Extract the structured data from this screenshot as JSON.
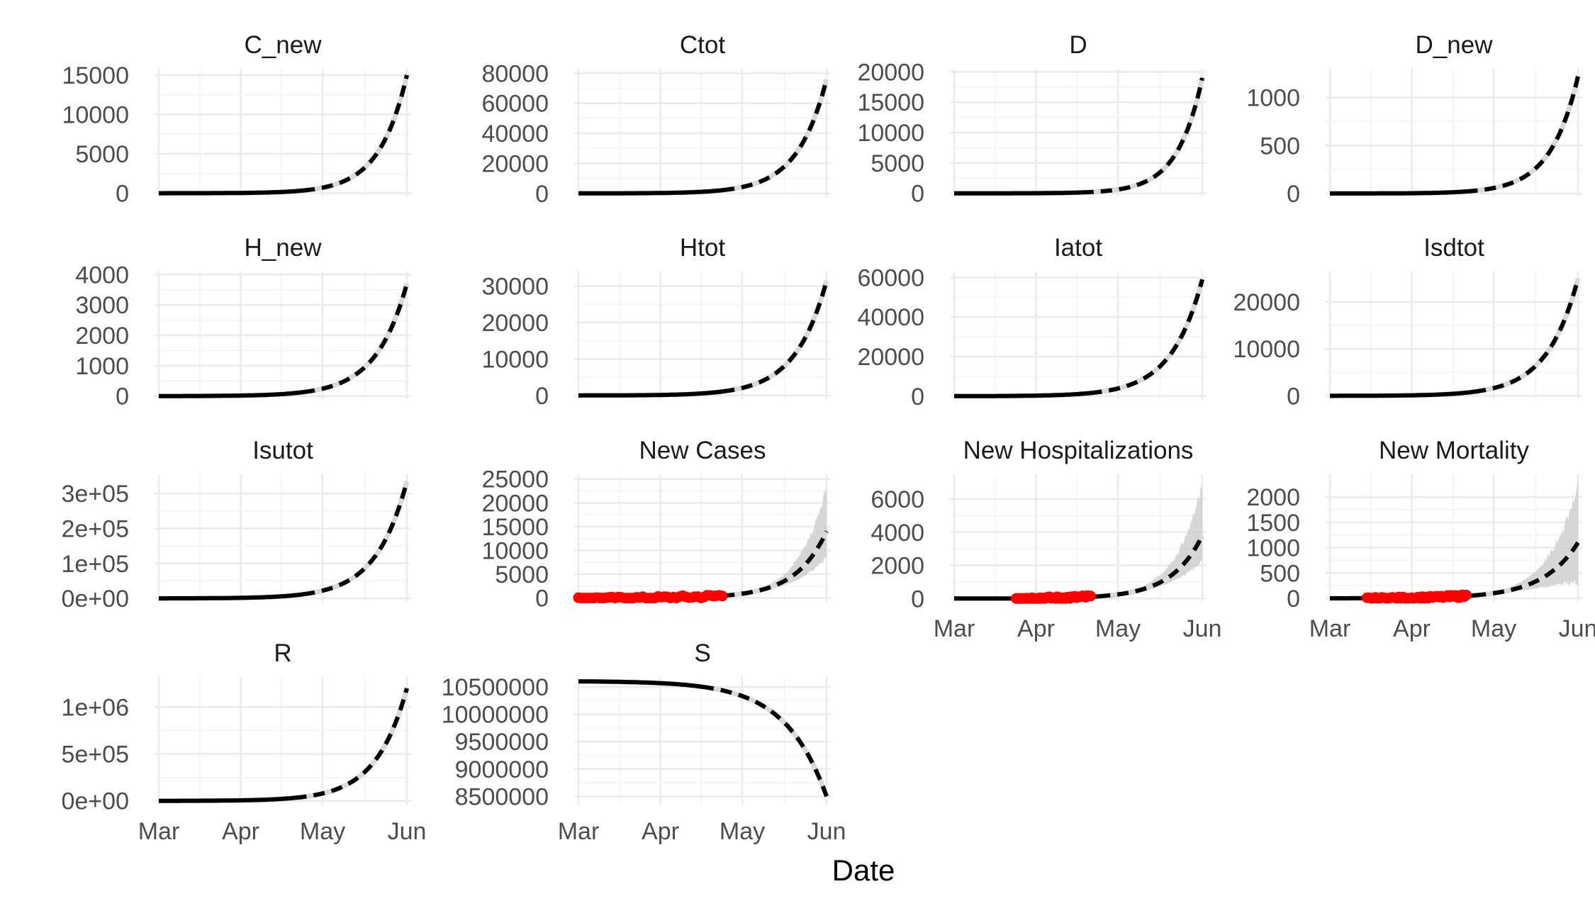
{
  "figure": {
    "x_axis_title": "Date",
    "x_tick_labels": [
      "Mar",
      "Apr",
      "May",
      "Jun"
    ],
    "colors": {
      "observed": "#ff0000",
      "projection": "#000000",
      "band": "#cfcfcf",
      "band_mean": "#ffffff",
      "grid": "#ebebeb"
    }
  },
  "chart_data": [
    {
      "type": "line",
      "title": "C_new",
      "x": [
        "Mar 1",
        "Jun 1"
      ],
      "y_ticks": [
        "0",
        "5000",
        "10000",
        "15000"
      ],
      "ylim": [
        -400,
        15800
      ],
      "peak": 15000,
      "grow": 9,
      "split": 0.58,
      "observed": false,
      "band": false
    },
    {
      "type": "line",
      "title": "Ctot",
      "y_ticks": [
        "0",
        "20000",
        "40000",
        "60000",
        "80000"
      ],
      "ylim": [
        -2000,
        83000
      ],
      "peak": 76000,
      "grow": 8.5,
      "split": 0.58,
      "observed": false,
      "band": false
    },
    {
      "type": "line",
      "title": "D",
      "y_ticks": [
        "0",
        "5000",
        "10000",
        "15000",
        "20000"
      ],
      "ylim": [
        -500,
        20500
      ],
      "peak": 19000,
      "grow": 10,
      "split": 0.52,
      "observed": false,
      "band": false
    },
    {
      "type": "line",
      "title": "D_new",
      "y_ticks": [
        "0",
        "500",
        "1000"
      ],
      "ylim": [
        -30,
        1300
      ],
      "peak": 1220,
      "grow": 9,
      "split": 0.55,
      "observed": false,
      "band": false
    },
    {
      "type": "line",
      "title": "H_new",
      "y_ticks": [
        "0",
        "1000",
        "2000",
        "3000",
        "4000"
      ],
      "ylim": [
        -100,
        4100
      ],
      "peak": 3700,
      "grow": 8,
      "split": 0.58,
      "observed": false,
      "band": false
    },
    {
      "type": "line",
      "title": "Htot",
      "y_ticks": [
        "0",
        "10000",
        "20000",
        "30000"
      ],
      "ylim": [
        -1000,
        34000
      ],
      "peak": 31500,
      "grow": 8,
      "split": 0.58,
      "observed": false,
      "band": false
    },
    {
      "type": "line",
      "title": "Iatot",
      "y_ticks": [
        "0",
        "20000",
        "40000",
        "60000"
      ],
      "ylim": [
        -1500,
        63000
      ],
      "peak": 59000,
      "grow": 8,
      "split": 0.55,
      "observed": false,
      "band": false
    },
    {
      "type": "line",
      "title": "Isdtot",
      "y_ticks": [
        "0",
        "10000",
        "20000"
      ],
      "ylim": [
        -700,
        26500
      ],
      "peak": 25000,
      "grow": 8,
      "split": 0.58,
      "observed": false,
      "band": false
    },
    {
      "type": "line",
      "title": "Isutot",
      "y_ticks": [
        "0e+00",
        "1e+05",
        "2e+05",
        "3e+05"
      ],
      "ylim": [
        -10000,
        355000
      ],
      "peak": 335000,
      "grow": 8,
      "split": 0.58,
      "observed": false,
      "band": false
    },
    {
      "type": "line",
      "title": "New Cases",
      "y_ticks": [
        "0",
        "5000",
        "10000",
        "15000",
        "20000",
        "25000"
      ],
      "ylim": [
        -800,
        26000
      ],
      "peak": 14000,
      "grow": 8,
      "split": 0.58,
      "observed": true,
      "obs_range": [
        0.0,
        0.58
      ],
      "obs_amp": 700,
      "band": true,
      "band_lo": 0.6,
      "band_hi": 1.7
    },
    {
      "type": "line",
      "title": "New Hospitalizations",
      "y_ticks": [
        "0",
        "2000",
        "4000",
        "6000"
      ],
      "ylim": [
        -200,
        7500
      ],
      "peak": 3800,
      "grow": 8,
      "split": 0.58,
      "observed": true,
      "obs_range": [
        0.25,
        0.55
      ],
      "obs_amp": 160,
      "band": true,
      "band_lo": 0.6,
      "band_hi": 1.8
    },
    {
      "type": "line",
      "title": "New Mortality",
      "y_ticks": [
        "0",
        "500",
        "1000",
        "1500",
        "2000"
      ],
      "ylim": [
        -70,
        2450
      ],
      "peak": 1100,
      "grow": 7,
      "split": 0.58,
      "observed": true,
      "obs_range": [
        0.15,
        0.55
      ],
      "obs_amp": 50,
      "band": true,
      "band_lo": 0.3,
      "band_hi": 2.05
    },
    {
      "type": "line",
      "title": "R",
      "y_ticks": [
        "0e+00",
        "5e+05",
        "1e+06"
      ],
      "ylim": [
        -40000,
        1320000
      ],
      "peak": 1200000,
      "grow": 8,
      "split": 0.55,
      "observed": false,
      "band": false
    },
    {
      "type": "line",
      "title": "S",
      "y_ticks": [
        "8500000",
        "9000000",
        "9500000",
        "10000000",
        "10500000"
      ],
      "ylim": [
        8350000,
        10680000
      ],
      "peak": 10600000,
      "drop": 2100000,
      "grow": 6,
      "split": 0.5,
      "observed": false,
      "band": false,
      "decreasing": true
    }
  ]
}
